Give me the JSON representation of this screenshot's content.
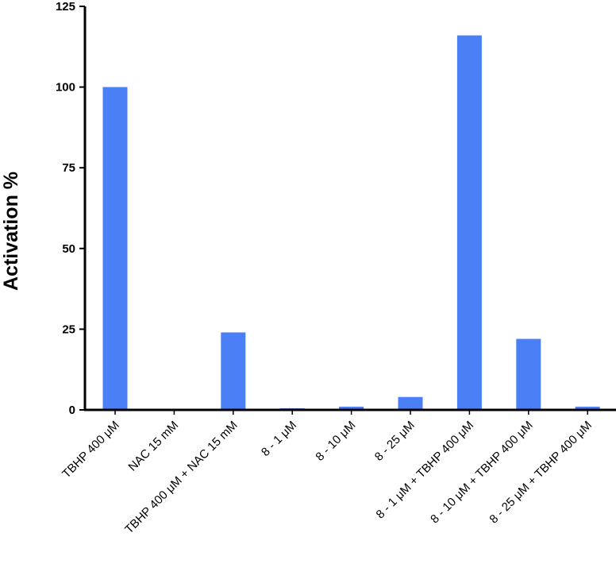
{
  "chart_data": {
    "type": "bar",
    "title": "",
    "xlabel": "",
    "ylabel": "Activation %",
    "ylim": [
      0,
      125
    ],
    "yticks": [
      0,
      25,
      50,
      75,
      100,
      125
    ],
    "grid": false,
    "legend": "none",
    "bar_color": "#4a7ff5",
    "categories": [
      "TBHP 400 μM",
      "NAC 15 mM",
      "TBHP 400 μM + NAC 15 mM",
      "8 - 1 μM",
      "8 - 10 μM",
      "8 - 25 μM",
      "8 - 1 μM + TBHP 400 μM",
      "8 - 10 μM + TBHP 400 μM",
      "8 - 25 μM + TBHP 400 μM"
    ],
    "values": [
      100,
      0,
      24,
      0.5,
      1,
      4,
      116,
      22,
      1
    ]
  }
}
